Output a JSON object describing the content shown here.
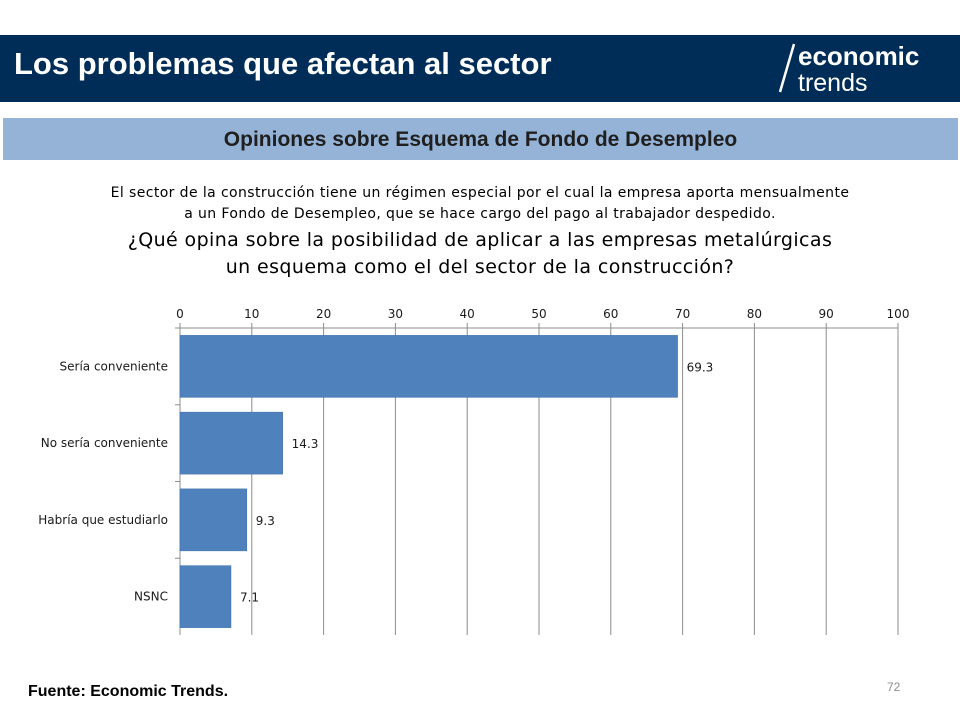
{
  "header": {
    "title": "Los problemas que afectan al sector",
    "logo_line1": "economic",
    "logo_line2": "trends"
  },
  "subtitle": "Opiniones sobre Esquema de Fondo de Desempleo",
  "question": {
    "context_line1": "El sector de la construcción tiene un régimen especial por el cual la empresa aporta mensualmente",
    "context_line2": "a un Fondo de Desempleo, que se hace cargo del pago al trabajador despedido.",
    "question_line1": "¿Qué opina sobre la posibilidad de aplicar a las empresas metalúrgicas",
    "question_line2": "un esquema como el del sector de la construcción?"
  },
  "chart_data": {
    "type": "bar",
    "orientation": "horizontal",
    "categories": [
      "Sería conveniente",
      "No sería conveniente",
      "Habría que estudiarlo",
      "NSNC"
    ],
    "values": [
      69.3,
      14.3,
      9.3,
      7.1
    ],
    "data_labels": [
      "69.3",
      "14.3",
      "9.3",
      "7.1"
    ],
    "xlim": [
      0,
      100
    ],
    "x_ticks": [
      0,
      10,
      20,
      30,
      40,
      50,
      60,
      70,
      80,
      90,
      100
    ],
    "x_axis_position": "top",
    "grid": true,
    "bar_color": "#4f81bd"
  },
  "footer": {
    "source": "Fuente: Economic Trends.",
    "page_number": "72"
  },
  "colors": {
    "header_background": "#002d57",
    "subtitle_background": "#95b3d7"
  }
}
